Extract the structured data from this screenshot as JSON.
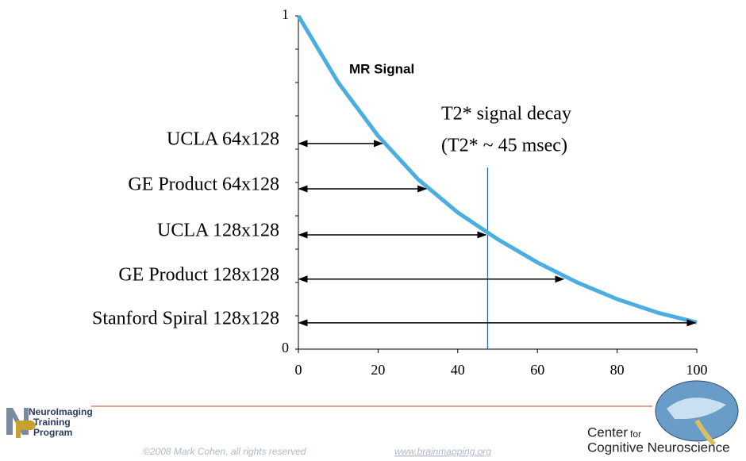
{
  "chart_data": {
    "type": "line",
    "title": "MR Signal",
    "annotations": [
      "T2* signal decay",
      "(T2* ~ 45 msec)"
    ],
    "x": [
      0,
      10,
      20,
      30,
      40,
      50,
      60,
      70,
      80,
      90,
      100
    ],
    "series": [
      {
        "color": "#4aaee0",
        "values": [
          1,
          0.8,
          0.64,
          0.51,
          0.41,
          0.33,
          0.26,
          0.2,
          0.15,
          0.11,
          0.08
        ]
      }
    ],
    "xlim": [
      0,
      100
    ],
    "xticks": [
      0,
      20,
      40,
      60,
      80,
      100
    ],
    "ylim": [
      0,
      1
    ],
    "yticks": [
      0,
      1
    ],
    "yminor_ticks": [
      0.1,
      0.2,
      0.3,
      0.4,
      0.5,
      0.6,
      0.7,
      0.8,
      0.9
    ],
    "vline_x": 47.5,
    "vline_top": 0.545,
    "arrows": [
      {
        "label": "UCLA 64x128",
        "y": 0.617,
        "x": 21
      },
      {
        "label": "GE Product 64x128",
        "y": 0.481,
        "x": 32
      },
      {
        "label": "UCLA 128x128",
        "y": 0.343,
        "x": 47
      },
      {
        "label": "GE Product 128x128",
        "y": 0.21,
        "x": 66.5
      },
      {
        "label": "Stanford Spiral 128x128",
        "y": 0.079,
        "x": 99.6
      }
    ]
  },
  "footer": {
    "logo_left": [
      "NeuroImaging",
      "Training",
      "Program"
    ],
    "logo_right": [
      "Center",
      "for",
      "Cognitive Neuroscience"
    ],
    "copyright": "©2008 Mark Cohen, all rights reserved",
    "url": "www.brainmapping.org"
  }
}
